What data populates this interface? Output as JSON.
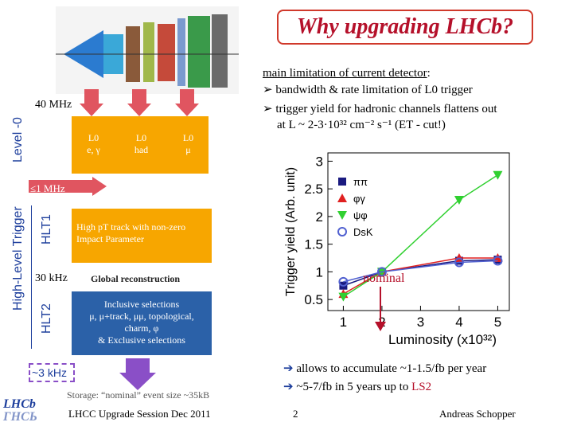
{
  "title": "Why upgrading LHCb?",
  "left_panel": {
    "rate_40mhz": "40 MHz",
    "level0_label": "Level -0",
    "l0_boxes": [
      {
        "line1": "L0",
        "line2": "e, γ"
      },
      {
        "line1": "L0",
        "line2": "had"
      },
      {
        "line1": "L0",
        "line2": "μ"
      }
    ],
    "rate_1mhz": "≤1 MHz",
    "hlt1_label": "HLT1",
    "hlt1_text": "High pT track with non-zero Impact Parameter",
    "hlt_trigger_label": "High-Level Trigger",
    "rate_30khz": "30 kHz",
    "global_reco": "Global reconstruction",
    "hlt2_label": "HLT2",
    "hlt2_text_line1": "Inclusive selections",
    "hlt2_text_line2": "μ, μ+track, μμ, topological,",
    "hlt2_text_line3": "charm, φ",
    "hlt2_text_line4": "& Exclusive selections",
    "rate_3khz": "~3 kHz",
    "storage": "Storage: “nominal” event size ~35kB"
  },
  "right_panel": {
    "heading": "main limitation of current detector",
    "heading_colon": ":",
    "bullet1": "bandwidth & rate limitation of L0 trigger",
    "bullet2_line1": "trigger yield for hadronic channels flattens out",
    "bullet2_line2": "at L ~ 2-3·10³² cm⁻² s⁻¹ (ET - cut!)",
    "nominal_label": "nominal",
    "conclusion1": "allows to accumulate ~1-1.5/fb per year",
    "conclusion2_prefix": "~5-7/fb in 5 years up to ",
    "conclusion2_highlight": "LS2"
  },
  "footer": {
    "logo_text": "LHCb",
    "logo_text2": "ГНСЬ",
    "session": "LHCC Upgrade Session Dec 2011",
    "page_number": "2",
    "author": "Andreas Schopper"
  },
  "colors": {
    "title": "#b5102a",
    "orange": "#f7a600",
    "blue": "#2b61a8",
    "red_arrow": "#e05560",
    "purple": "#8a4fc7"
  },
  "chart_data": {
    "type": "line",
    "xlabel": "Luminosity (x10³²)",
    "ylabel": "Trigger yield (Arb. unit)",
    "x_ticks": [
      "1",
      "2",
      "3",
      "4",
      "5"
    ],
    "y_ticks": [
      "0.5",
      "1",
      "1.5",
      "2",
      "2.5",
      "3"
    ],
    "xlim": [
      0.6,
      5.3
    ],
    "ylim": [
      0.3,
      3.15
    ],
    "series": [
      {
        "name": "ππ",
        "color": "#1a1a80",
        "marker": "square",
        "x": [
          1,
          2,
          4,
          5
        ],
        "y": [
          0.75,
          1.0,
          1.2,
          1.22
        ]
      },
      {
        "name": "φγ",
        "color": "#e02020",
        "marker": "triangle",
        "x": [
          1,
          2,
          4,
          5
        ],
        "y": [
          0.6,
          1.0,
          1.25,
          1.25
        ]
      },
      {
        "name": "ψφ",
        "color": "#30d030",
        "marker": "triangle-down",
        "x": [
          1,
          2,
          4,
          5
        ],
        "y": [
          0.55,
          1.0,
          2.3,
          2.75
        ]
      },
      {
        "name": "DsK",
        "color": "#5060d0",
        "marker": "circle",
        "x": [
          1,
          2,
          4,
          5
        ],
        "y": [
          0.82,
          1.0,
          1.17,
          1.2
        ]
      }
    ]
  }
}
